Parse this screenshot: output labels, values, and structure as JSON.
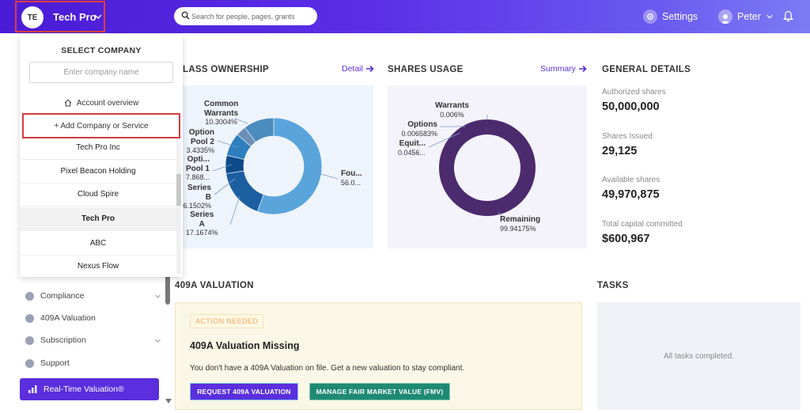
{
  "header": {
    "company_avatar": "TE",
    "company_name": "Tech Pro",
    "search_placeholder": "Search for people, pages, grants",
    "settings_label": "Settings",
    "user_name": "Peter",
    "brand_color": "#5b2ede"
  },
  "dropdown": {
    "title": "SELECT COMPANY",
    "input_placeholder": "Enter company name",
    "account_overview": "Account overview",
    "add_company": "+ Add Company or Service",
    "companies": [
      {
        "name": "Tech Pro Inc",
        "active": false
      },
      {
        "name": "Pixel Beacon Holding",
        "active": false
      },
      {
        "name": "Cloud Spire",
        "active": false
      },
      {
        "name": "Tech Pro",
        "active": true
      },
      {
        "name": "ABC",
        "active": false
      },
      {
        "name": "Nexus Flow",
        "active": false
      }
    ]
  },
  "sidebar": {
    "items": [
      {
        "label": "Compliance",
        "icon": "shield-icon",
        "has_chevron": true
      },
      {
        "label": "409A Valuation",
        "icon": "chart-icon",
        "has_chevron": false
      },
      {
        "label": "Subscription",
        "icon": "dollar-icon",
        "has_chevron": true
      },
      {
        "label": "Support",
        "icon": "support-icon",
        "has_chevron": false
      }
    ],
    "cta_label": "Real-Time Valuation®"
  },
  "class_ownership": {
    "title": "LASS OWNERSHIP",
    "link": "Detail",
    "labels": [
      {
        "name1": "Common",
        "name2": "Warrants",
        "value": "10.3004%"
      },
      {
        "name1": "Option",
        "name2": "Pool 2",
        "value": "3.4335%"
      },
      {
        "name1": "Opti...",
        "name2": "Pool 1",
        "value": "7.868..."
      },
      {
        "name1": "Series",
        "name2": "B",
        "value": "6.1502%"
      },
      {
        "name1": "Series",
        "name2": "A",
        "value": "17.1674%"
      },
      {
        "name1": "Fou...",
        "name2": "",
        "value": "56.0..."
      }
    ]
  },
  "shares_usage": {
    "title": "SHARES USAGE",
    "link": "Summary",
    "labels": [
      {
        "name": "Warrants",
        "value": "0.006%"
      },
      {
        "name": "Options",
        "value": "0.006583%"
      },
      {
        "name": "Equit...",
        "value": "0.0456..."
      },
      {
        "name": "Remaining",
        "value": "99.94175%"
      }
    ]
  },
  "general_details": {
    "title": "GENERAL DETAILS",
    "items": [
      {
        "label": "Authorized shares",
        "value": "50,000,000"
      },
      {
        "label": "Shares Issued",
        "value": "29,125"
      },
      {
        "label": "Available shares",
        "value": "49,970,875"
      },
      {
        "label": "Total capital committed",
        "value": "$600,967"
      }
    ]
  },
  "valuation": {
    "title": "409A VALUATION",
    "badge": "ACTION NEEDED",
    "heading": "409A Valuation Missing",
    "text": "You don't have a 409A Valuation on file. Get a new valuation to stay compliant.",
    "btn_request": "REQUEST 409A VALUATION",
    "btn_fmv": "MANAGE FAIR MARKET VALUE (FMV)"
  },
  "tasks": {
    "title": "TASKS",
    "empty_text": "All tasks completed."
  },
  "chart_data": [
    {
      "type": "pie",
      "title": "CLASS OWNERSHIP",
      "categories": [
        "Founders",
        "Series A",
        "Series B",
        "Option Pool 1",
        "Option Pool 2",
        "Common Warrants"
      ],
      "values": [
        56.0,
        17.1674,
        6.1502,
        7.868,
        3.4335,
        10.3004
      ],
      "colors": [
        "#5aa4dc",
        "#1c5fa0",
        "#0e4a8a",
        "#2e7fc0",
        "#6b8fb5",
        "#4a8cbe"
      ]
    },
    {
      "type": "pie",
      "title": "SHARES USAGE",
      "categories": [
        "Remaining",
        "Warrants",
        "Options",
        "Equity"
      ],
      "values": [
        99.94175,
        0.006,
        0.006583,
        0.0456
      ],
      "colors": [
        "#4b2a6e",
        "#4b2a6e",
        "#4b2a6e",
        "#4b2a6e"
      ]
    }
  ]
}
